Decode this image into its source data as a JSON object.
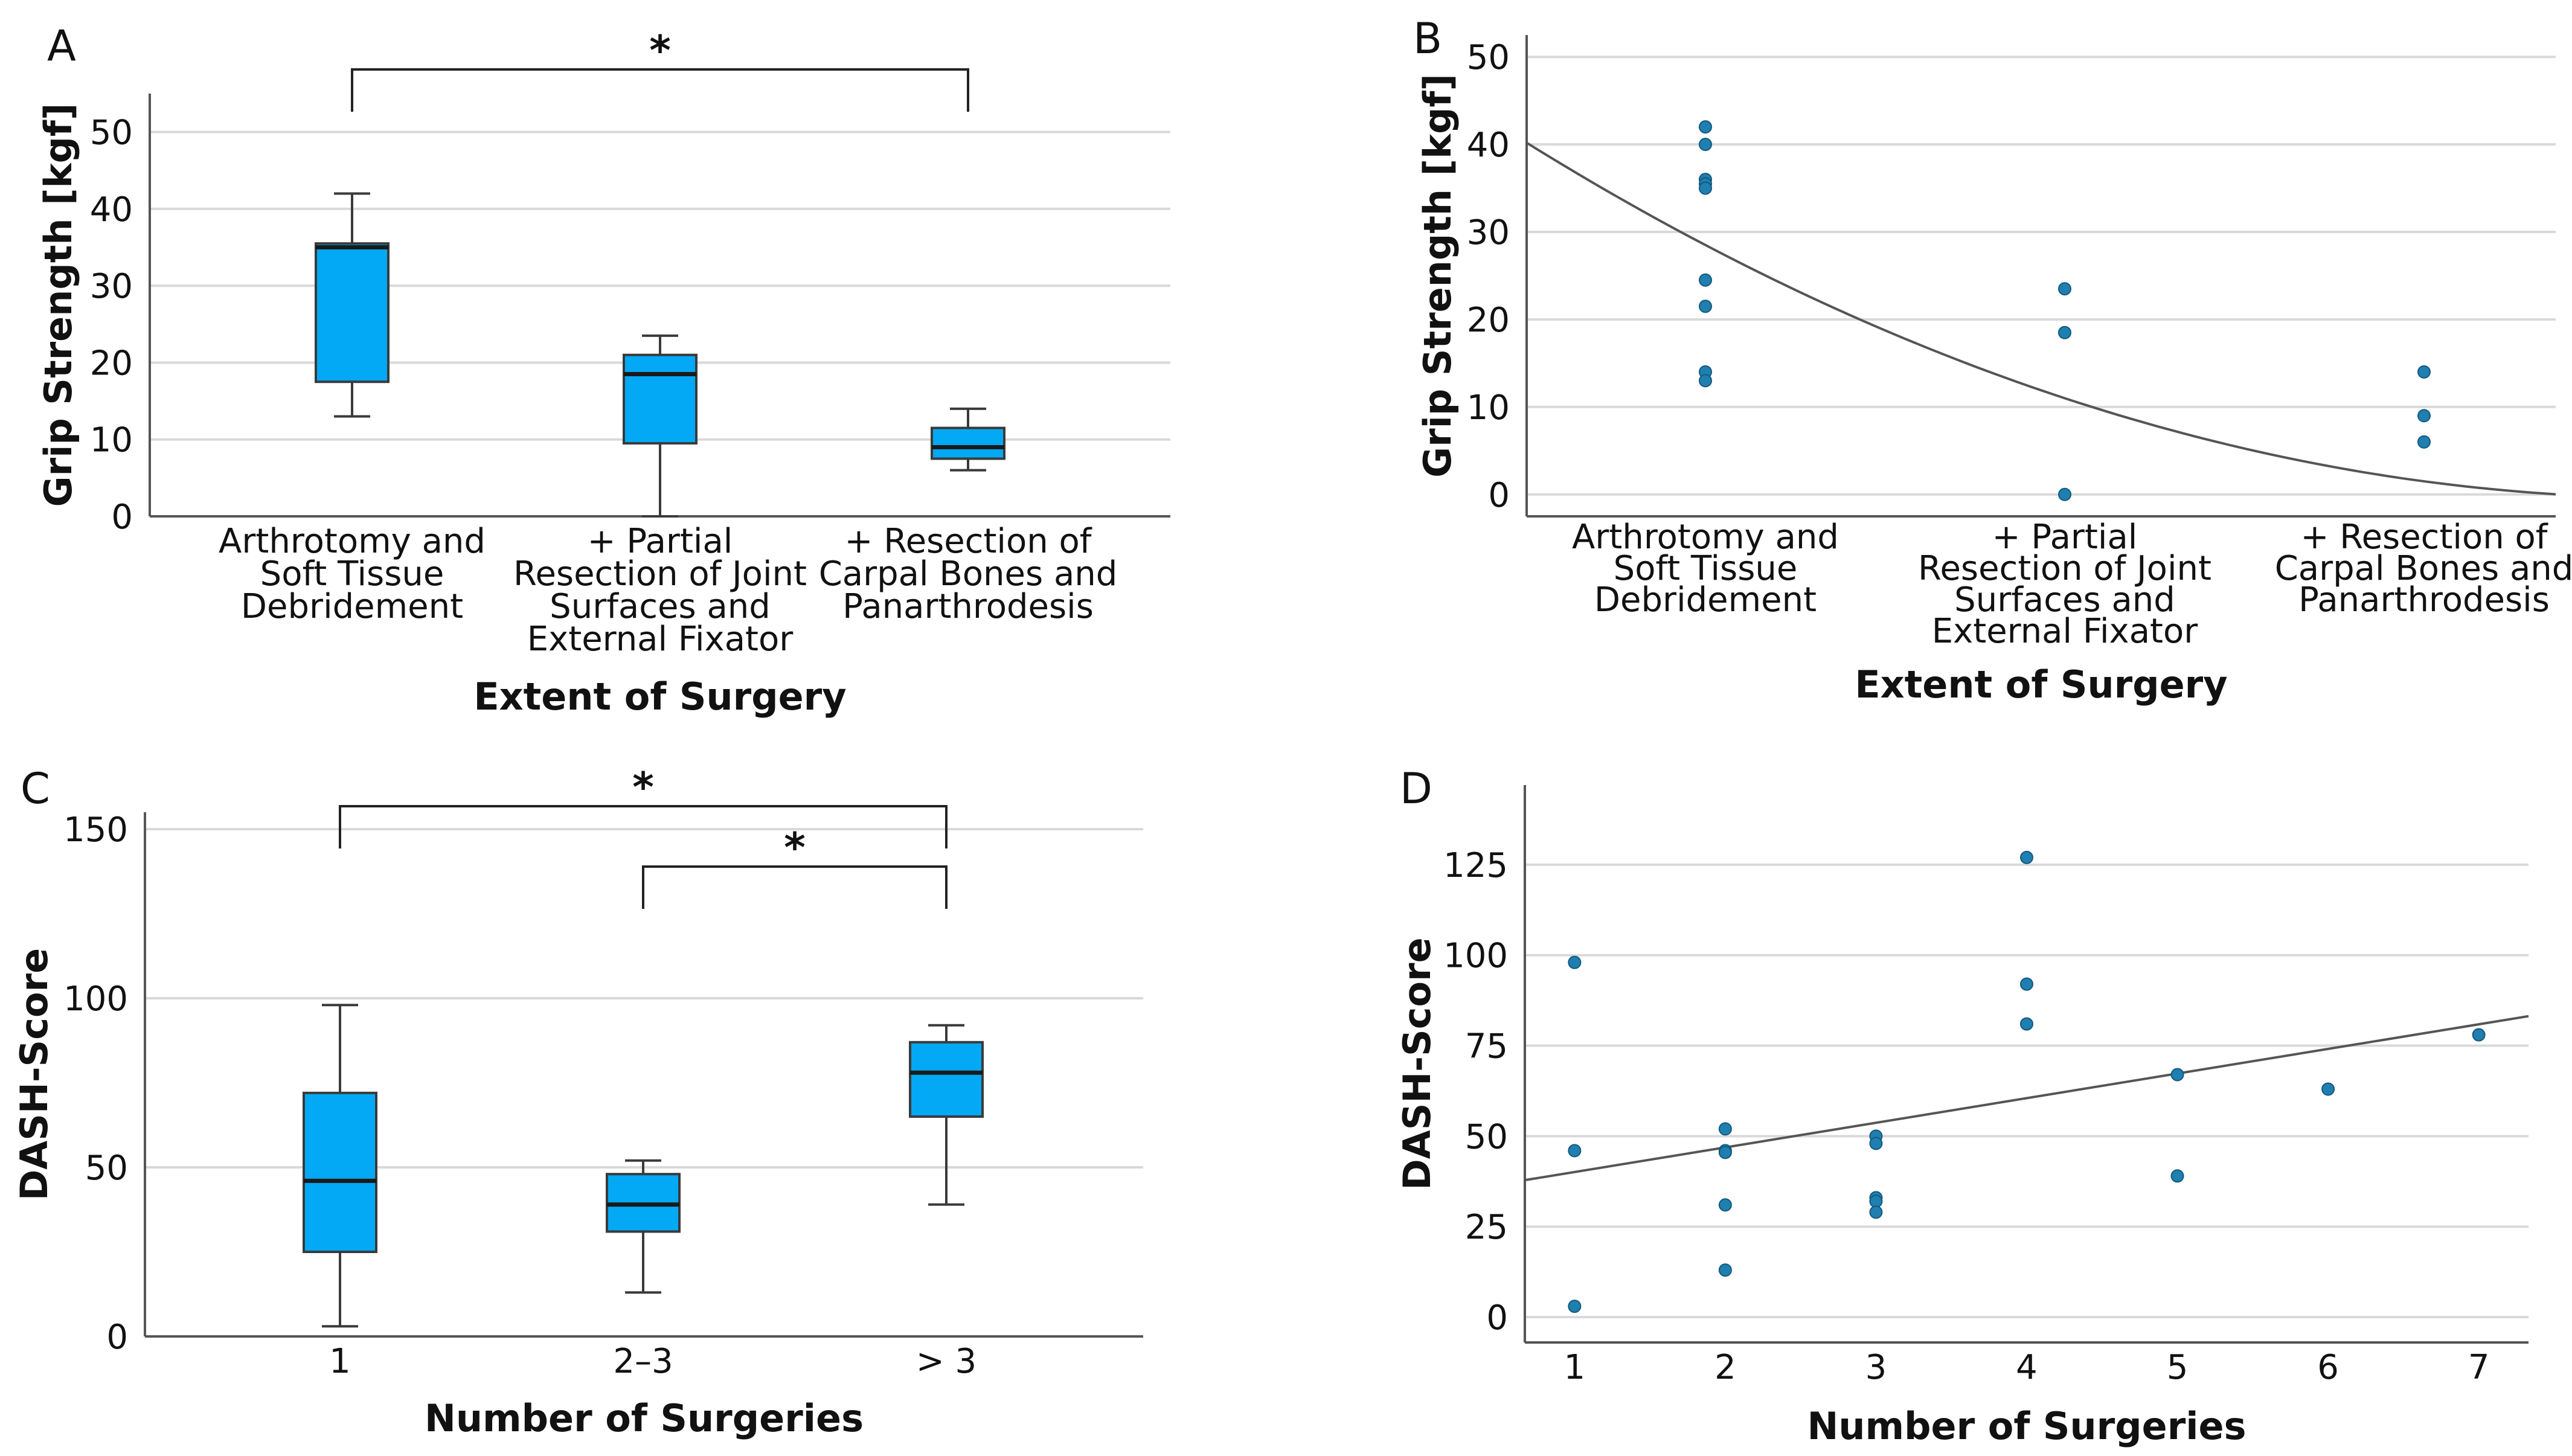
{
  "colors": {
    "box_fill": "#03A9F4",
    "box_stroke": "#3a3a3a",
    "point": "#1f7fb0",
    "grid": "#d9d9d9",
    "axis": "#555555",
    "fit": "#555555"
  },
  "chart_data": [
    {
      "panel": "A",
      "type": "box",
      "xlabel": "Extent of Surgery",
      "ylabel": "Grip Strength [kgf]",
      "ylim": [
        0,
        55
      ],
      "yticks": [
        0,
        10,
        20,
        30,
        40,
        50
      ],
      "grid": true,
      "categories": [
        [
          "Arthrotomy and",
          "Soft Tissue",
          "Debridement"
        ],
        [
          "+ Partial",
          "Resection of Joint",
          "Surfaces and",
          "External Fixator"
        ],
        [
          "+ Resection of",
          "Carpal Bones and",
          "Panarthrodesis"
        ]
      ],
      "boxes": [
        {
          "min": 13,
          "q1": 17.5,
          "median": 35,
          "q3": 35.5,
          "max": 42
        },
        {
          "min": 0,
          "q1": 9.5,
          "median": 18.5,
          "q3": 21,
          "max": 23.5
        },
        {
          "min": 6,
          "q1": 7.5,
          "median": 9,
          "q3": 11.5,
          "max": 14
        }
      ],
      "significance": [
        {
          "from": 0,
          "to": 2,
          "label": "*"
        }
      ]
    },
    {
      "panel": "B",
      "type": "scatter",
      "xlabel": "Extent of Surgery",
      "ylabel": "Grip Strength [kgf]",
      "ylim": [
        -2.5,
        52.5
      ],
      "yticks": [
        0,
        10,
        20,
        30,
        40,
        50
      ],
      "grid": true,
      "categories": [
        [
          "Arthrotomy and",
          "Soft Tissue",
          "Debridement"
        ],
        [
          "+ Partial",
          "Resection of Joint",
          "Surfaces and",
          "External Fixator"
        ],
        [
          "+ Resection of",
          "Carpal Bones and",
          "Panarthrodesis"
        ]
      ],
      "points": [
        [
          0,
          42
        ],
        [
          0,
          40
        ],
        [
          0,
          36
        ],
        [
          0,
          35.5
        ],
        [
          0,
          35
        ],
        [
          0,
          24.5
        ],
        [
          0,
          21.5
        ],
        [
          0,
          14
        ],
        [
          0,
          13
        ],
        [
          1,
          23.5
        ],
        [
          1,
          18.5
        ],
        [
          1,
          0
        ],
        [
          2,
          14
        ],
        [
          2,
          9
        ],
        [
          2,
          6
        ]
      ],
      "fit": {
        "type": "quadratic",
        "a": 4.0,
        "b": -21.5,
        "c": 28.5
      }
    },
    {
      "panel": "C",
      "type": "box",
      "xlabel": "Number of Surgeries",
      "ylabel": "DASH-Score",
      "ylim": [
        0,
        155
      ],
      "yticks": [
        0,
        50,
        100,
        150
      ],
      "grid": true,
      "categories": [
        [
          "1"
        ],
        [
          "2–3"
        ],
        [
          "> 3"
        ]
      ],
      "boxes": [
        {
          "min": 3,
          "q1": 25,
          "median": 46,
          "q3": 72,
          "max": 98
        },
        {
          "min": 13,
          "q1": 31,
          "median": 39,
          "q3": 48,
          "max": 52
        },
        {
          "min": 39,
          "q1": 65,
          "median": 78,
          "q3": 87,
          "max": 92
        }
      ],
      "significance": [
        {
          "from": 0,
          "to": 2,
          "label": "*"
        },
        {
          "from": 1,
          "to": 2,
          "label": "*"
        }
      ]
    },
    {
      "panel": "D",
      "type": "scatter",
      "xlabel": "Number of Surgeries",
      "ylabel": "DASH-Score",
      "xlim": [
        0.67,
        7.33
      ],
      "ylim": [
        -7,
        147
      ],
      "xticks": [
        1,
        2,
        3,
        4,
        5,
        6,
        7
      ],
      "yticks": [
        0,
        25,
        50,
        75,
        100,
        125
      ],
      "grid": true,
      "points": [
        [
          1,
          98
        ],
        [
          1,
          46
        ],
        [
          1,
          3
        ],
        [
          2,
          52
        ],
        [
          2,
          46
        ],
        [
          2,
          45.5
        ],
        [
          2,
          31
        ],
        [
          2,
          13
        ],
        [
          3,
          50
        ],
        [
          3,
          48
        ],
        [
          3,
          33
        ],
        [
          3,
          32
        ],
        [
          3,
          29
        ],
        [
          4,
          127
        ],
        [
          4,
          92
        ],
        [
          4,
          81
        ],
        [
          5,
          67
        ],
        [
          5,
          39
        ],
        [
          6,
          63
        ],
        [
          7,
          78
        ]
      ],
      "fit": {
        "type": "linear",
        "slope": 6.8,
        "intercept": 33.3
      }
    }
  ]
}
